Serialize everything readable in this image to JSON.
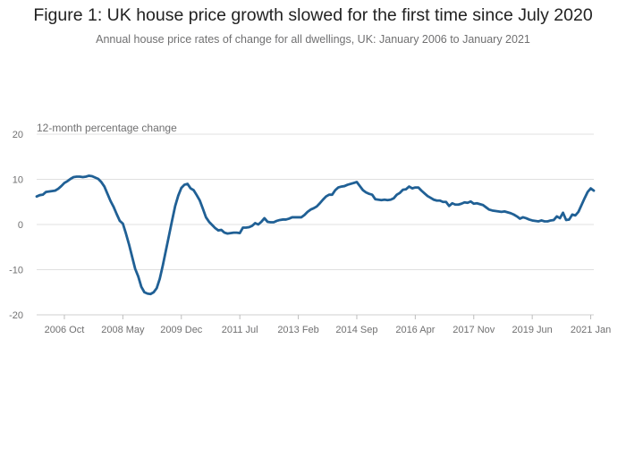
{
  "title": "Figure 1: UK house price growth slowed for the first time since July 2020",
  "subtitle": "Annual house price rates of change for all dwellings, UK: January 2006 to January 2021",
  "colors": {
    "line": "#206095",
    "grid": "#e0e0e0",
    "text": "#707071"
  },
  "chart_data": {
    "type": "line",
    "title": "Figure 1: UK house price growth slowed for the first time since July 2020",
    "subtitle": "Annual house price rates of change for all dwellings, UK: January 2006 to January 2021",
    "ylabel": "12-month percentage change",
    "xlabel": "",
    "ylim": [
      -20,
      20
    ],
    "yticks": [
      20,
      10,
      0,
      -10,
      -20
    ],
    "x_range": [
      "2006 Jan",
      "2021 Jan"
    ],
    "xticks": [
      {
        "month_index": 9,
        "label": "2006 Oct"
      },
      {
        "month_index": 28,
        "label": "2008 May"
      },
      {
        "month_index": 47,
        "label": "2009 Dec"
      },
      {
        "month_index": 66,
        "label": "2011 Jul"
      },
      {
        "month_index": 85,
        "label": "2013 Feb"
      },
      {
        "month_index": 104,
        "label": "2014 Sep"
      },
      {
        "month_index": 123,
        "label": "2016 Apr"
      },
      {
        "month_index": 142,
        "label": "2017 Nov"
      },
      {
        "month_index": 161,
        "label": "2019 Jun"
      },
      {
        "month_index": 180,
        "label": "2021 Jan"
      }
    ],
    "grid": true,
    "series": [
      {
        "name": "Annual house price rate of change",
        "start": "2006 Jan",
        "frequency": "monthly",
        "values": [
          6.2,
          6.5,
          6.6,
          7.2,
          7.3,
          7.4,
          7.5,
          7.9,
          8.5,
          9.2,
          9.6,
          10.1,
          10.5,
          10.6,
          10.6,
          10.5,
          10.6,
          10.8,
          10.7,
          10.4,
          10.1,
          9.4,
          8.4,
          6.8,
          5.2,
          3.9,
          2.3,
          0.8,
          0.2,
          -2.0,
          -4.4,
          -7.1,
          -9.8,
          -11.5,
          -13.8,
          -15.0,
          -15.3,
          -15.4,
          -15.0,
          -14.1,
          -12.0,
          -9.0,
          -5.7,
          -2.4,
          0.9,
          4.1,
          6.4,
          8.1,
          8.8,
          9.0,
          8.0,
          7.6,
          6.5,
          5.3,
          3.5,
          1.6,
          0.6,
          -0.1,
          -0.8,
          -1.3,
          -1.2,
          -1.8,
          -2.0,
          -1.9,
          -1.8,
          -1.8,
          -1.9,
          -0.7,
          -0.7,
          -0.6,
          -0.3,
          0.3,
          0.0,
          0.6,
          1.4,
          0.6,
          0.5,
          0.5,
          0.8,
          1.0,
          1.1,
          1.1,
          1.3,
          1.6,
          1.6,
          1.6,
          1.6,
          2.1,
          2.8,
          3.3,
          3.6,
          4.0,
          4.7,
          5.5,
          6.2,
          6.6,
          6.6,
          7.6,
          8.2,
          8.4,
          8.5,
          8.8,
          9.0,
          9.2,
          9.4,
          8.5,
          7.6,
          7.1,
          6.8,
          6.6,
          5.6,
          5.5,
          5.4,
          5.5,
          5.4,
          5.5,
          5.8,
          6.6,
          7.0,
          7.7,
          7.8,
          8.4,
          8.0,
          8.2,
          8.2,
          7.5,
          6.9,
          6.3,
          5.9,
          5.5,
          5.3,
          5.3,
          5.0,
          5.0,
          4.1,
          4.7,
          4.4,
          4.4,
          4.6,
          4.9,
          4.8,
          5.1,
          4.6,
          4.7,
          4.5,
          4.3,
          3.8,
          3.3,
          3.1,
          3.0,
          2.9,
          2.8,
          2.9,
          2.7,
          2.5,
          2.2,
          1.8,
          1.3,
          1.6,
          1.4,
          1.1,
          0.9,
          0.8,
          0.7,
          0.9,
          0.7,
          0.7,
          0.9,
          1.0,
          1.8,
          1.4,
          2.6,
          1.0,
          1.1,
          2.2,
          2.0,
          2.8,
          4.3,
          5.8,
          7.2,
          8.0,
          7.5
        ]
      }
    ]
  }
}
